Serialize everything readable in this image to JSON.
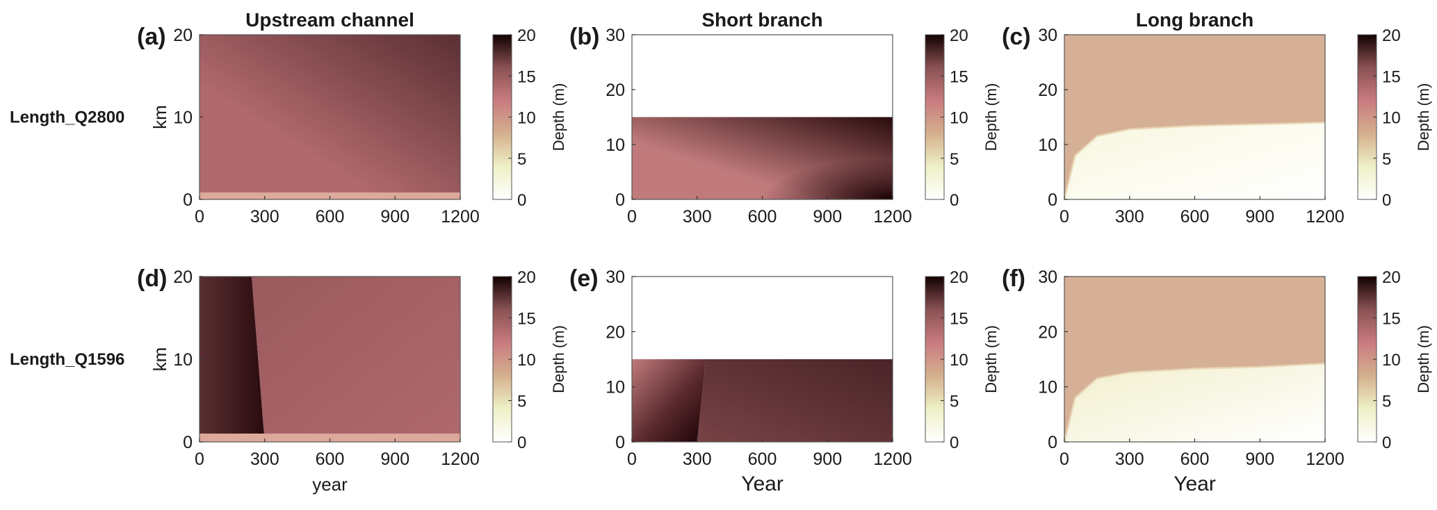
{
  "column_titles": [
    "Upstream channel",
    "Short branch",
    "Long branch"
  ],
  "row_labels": [
    "Length_Q2800",
    "Length_Q1596"
  ],
  "colorbar_label": "Depth (m)",
  "colorbar_ticks": [
    "0",
    "5",
    "10",
    "15",
    "20"
  ],
  "colormap": [
    "#ffffff",
    "#eef0c6",
    "#d4b08d",
    "#c97b80",
    "#8a5253",
    "#120002"
  ],
  "chart_data": [
    {
      "type": "heatmap",
      "panel": "(a)",
      "row": 0,
      "col": 0,
      "title": "Upstream channel",
      "row_label": "Length_Q2800",
      "xlabel": "",
      "ylabel": "km",
      "xlim": [
        0,
        1200
      ],
      "ylim": [
        0,
        20
      ],
      "xticks": [
        "0",
        "300",
        "600",
        "900",
        "1200"
      ],
      "yticks": [
        "0",
        "10",
        "20"
      ],
      "channel_top_km": 20,
      "colorbar": "Depth (m)",
      "clim": [
        0,
        20
      ],
      "colors": {
        "base": "#b0696d",
        "grad_end": "#5a2f33",
        "bottom_strip": "#dca99a"
      }
    },
    {
      "type": "heatmap",
      "panel": "(b)",
      "row": 0,
      "col": 1,
      "title": "Short branch",
      "row_label": "Length_Q2800",
      "xlabel": "",
      "ylabel": "",
      "xlim": [
        0,
        1200
      ],
      "ylim": [
        0,
        30
      ],
      "xticks": [
        "0",
        "300",
        "600",
        "900",
        "1200"
      ],
      "yticks": [
        "0",
        "10",
        "20",
        "30"
      ],
      "channel_top_km": 15,
      "colorbar": "Depth (m)",
      "clim": [
        0,
        20
      ],
      "colors": {
        "base": "#c07a7c",
        "grad_end": "#2a0b0d",
        "deep": "#1a0003"
      }
    },
    {
      "type": "heatmap",
      "panel": "(c)",
      "row": 0,
      "col": 2,
      "title": "Long branch",
      "row_label": "Length_Q2800",
      "xlabel": "",
      "ylabel": "",
      "xlim": [
        0,
        1200
      ],
      "ylim": [
        0,
        30
      ],
      "xticks": [
        "0",
        "300",
        "600",
        "900",
        "1200"
      ],
      "yticks": [
        "0",
        "10",
        "20",
        "30"
      ],
      "boundary_km": [
        [
          0,
          0
        ],
        [
          50,
          8
        ],
        [
          150,
          11.5
        ],
        [
          300,
          12.8
        ],
        [
          600,
          13.4
        ],
        [
          900,
          13.7
        ],
        [
          1200,
          14
        ]
      ],
      "colorbar": "Depth (m)",
      "clim": [
        0,
        20
      ],
      "colors": {
        "upper": "#d6b096",
        "lower": "#f8f7df"
      }
    },
    {
      "type": "heatmap",
      "panel": "(d)",
      "row": 1,
      "col": 0,
      "title": "Upstream channel",
      "row_label": "Length_Q1596",
      "xlabel": "year",
      "ylabel": "km",
      "xlim": [
        0,
        1200
      ],
      "ylim": [
        0,
        20
      ],
      "xticks": [
        "0",
        "300",
        "600",
        "900",
        "1200"
      ],
      "yticks": [
        "0",
        "10",
        "20"
      ],
      "channel_top_km": 20,
      "transition_year_top": 240,
      "transition_year_bottom": 300,
      "colorbar": "Depth (m)",
      "clim": [
        0,
        20
      ],
      "colors": {
        "base": "#b0696d",
        "early": "#5a2f33",
        "early_dark": "#2a0b0d",
        "bottom_strip": "#dca99a"
      }
    },
    {
      "type": "heatmap",
      "panel": "(e)",
      "row": 1,
      "col": 1,
      "title": "Short branch",
      "row_label": "Length_Q1596",
      "xlabel": "Year",
      "ylabel": "",
      "xlim": [
        0,
        1200
      ],
      "ylim": [
        0,
        30
      ],
      "xticks": [
        "0",
        "300",
        "600",
        "900",
        "1200"
      ],
      "yticks": [
        "0",
        "10",
        "20",
        "30"
      ],
      "channel_top_km": 15,
      "transition_year_top": 340,
      "transition_year_bottom": 300,
      "colorbar": "Depth (m)",
      "clim": [
        0,
        20
      ],
      "colors": {
        "base": "#774346",
        "edge": "#c07a7c",
        "early_dark": "#1a0003",
        "grad_end": "#4a2428"
      }
    },
    {
      "type": "heatmap",
      "panel": "(f)",
      "row": 1,
      "col": 2,
      "title": "Long branch",
      "row_label": "Length_Q1596",
      "xlabel": "Year",
      "ylabel": "",
      "xlim": [
        0,
        1200
      ],
      "ylim": [
        0,
        30
      ],
      "xticks": [
        "0",
        "300",
        "600",
        "900",
        "1200"
      ],
      "yticks": [
        "0",
        "10",
        "20",
        "30"
      ],
      "boundary_km": [
        [
          0,
          0
        ],
        [
          50,
          8
        ],
        [
          150,
          11.5
        ],
        [
          300,
          12.6
        ],
        [
          600,
          13.3
        ],
        [
          900,
          13.6
        ],
        [
          1200,
          14.2
        ]
      ],
      "colorbar": "Depth (m)",
      "clim": [
        0,
        20
      ],
      "colors": {
        "upper": "#d6b096",
        "lower": "#f2efcc"
      }
    }
  ]
}
